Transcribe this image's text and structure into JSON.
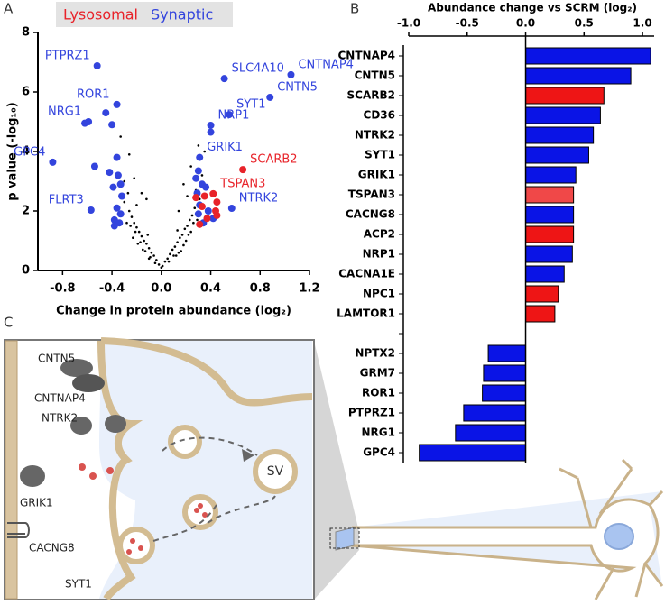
{
  "panel_labels": [
    "A",
    "B",
    "C"
  ],
  "chart_data": [
    {
      "type": "scatter",
      "xlabel": "Change in protein abundance (log₂)",
      "ylabel": "p value (-log₁₀)",
      "xlim": [
        -1.0,
        1.2
      ],
      "ylim": [
        0,
        8
      ],
      "xticks": [
        -0.8,
        -0.4,
        {
          "value": 0,
          "label": "0.0"
        },
        0.4,
        0.8,
        1.2
      ],
      "yticks": [
        0,
        2,
        4,
        6,
        8
      ],
      "series": [
        {
          "color": "#000000",
          "x": [
            -0.02,
            0.01,
            0.03,
            -0.04,
            0.05,
            -0.06,
            0.07,
            -0.08,
            0.09,
            -0.1,
            0.11,
            -0.12,
            0.13,
            -0.14,
            0.15,
            -0.16,
            0.17,
            -0.18,
            0.19,
            -0.2,
            0.21,
            -0.22,
            0.23,
            -0.24,
            0.25,
            -0.26,
            0.27,
            -0.15,
            0.16,
            -0.19,
            0.2,
            -0.23,
            0.24,
            -0.28,
            0.29,
            -0.1,
            0.12,
            -0.05,
            0.06,
            0.0,
            -0.3,
            0.31,
            -0.25,
            0.26,
            -0.21,
            0.22,
            -0.17,
            0.18,
            -0.13,
            0.14,
            -0.09,
            0.1,
            -0.27,
            0.28,
            -0.11,
            0.13,
            -0.2,
            0.21,
            -0.3,
            0.33,
            0.18,
            -0.16,
            0.24,
            -0.22,
            0.14,
            -0.12,
            0.3,
            -0.26,
            0.35,
            -0.33
          ],
          "values": [
            0.2,
            0.15,
            0.3,
            0.35,
            0.4,
            0.5,
            0.55,
            0.6,
            0.7,
            0.75,
            0.8,
            0.9,
            0.95,
            1.0,
            1.1,
            1.15,
            1.2,
            1.3,
            1.4,
            1.45,
            1.5,
            1.6,
            1.7,
            1.8,
            1.85,
            2.0,
            2.1,
            0.7,
            0.65,
            0.9,
            1.0,
            1.1,
            1.3,
            1.6,
            1.7,
            0.4,
            0.5,
            0.25,
            0.3,
            0.1,
            2.3,
            2.4,
            1.5,
            1.6,
            1.3,
            1.2,
            0.95,
            0.85,
            0.65,
            0.6,
            0.45,
            0.5,
            2.6,
            2.7,
            1.2,
            1.35,
            2.2,
            2.5,
            3.0,
            3.2,
            2.9,
            2.6,
            3.5,
            3.1,
            2.0,
            2.4,
            4.2,
            3.9,
            4.0,
            4.5
          ]
        },
        {
          "name": "Synaptic",
          "color": "#3344dd",
          "x": [
            -0.52,
            -0.36,
            -0.59,
            -0.88,
            -0.57,
            0.51,
            0.55,
            1.05,
            0.88,
            0.4,
            0.31,
            0.57,
            -0.45,
            -0.62,
            -0.4,
            -0.54,
            -0.36,
            -0.42,
            -0.35,
            -0.33,
            -0.39,
            -0.32,
            -0.36,
            -0.33,
            -0.38,
            -0.34,
            -0.38,
            0.4,
            0.3,
            0.28,
            0.33,
            0.29,
            0.36,
            0.31,
            0.38,
            0.3,
            0.34,
            0.42
          ],
          "values": [
            6.88,
            5.58,
            5.0,
            3.64,
            2.03,
            6.45,
            5.24,
            6.58,
            5.82,
            4.88,
            3.8,
            2.09,
            5.3,
            4.95,
            4.9,
            3.5,
            3.8,
            3.3,
            3.2,
            2.9,
            2.8,
            2.5,
            2.1,
            1.9,
            1.7,
            1.6,
            1.5,
            4.65,
            3.35,
            3.1,
            2.9,
            2.6,
            2.8,
            2.2,
            2.0,
            1.9,
            1.6,
            1.75
          ],
          "labels": [
            "PTPRZ1",
            "ROR1",
            "NRG1",
            "GPC4",
            "FLRT3",
            "SLC4A10",
            "SYT1",
            "CNTNAP4",
            "CNTN5",
            "NRP1",
            "GRIK1",
            "NTRK2",
            null,
            null,
            null,
            null,
            null,
            null,
            null,
            null,
            null,
            null,
            null,
            null,
            null,
            null,
            null,
            null,
            null,
            null,
            null,
            null,
            null,
            null,
            null,
            null,
            null,
            null
          ]
        },
        {
          "name": "Lysosomal",
          "color": "#e8232a",
          "x": [
            0.66,
            0.42,
            0.28,
            0.35,
            0.45,
            0.33,
            0.44,
            0.37,
            0.45,
            0.31
          ],
          "values": [
            3.39,
            2.58,
            2.45,
            2.5,
            2.3,
            2.15,
            2.0,
            1.75,
            1.85,
            1.55
          ],
          "labels": [
            "SCARB2",
            "TSPAN3",
            null,
            null,
            null,
            null,
            null,
            null,
            null,
            null
          ]
        }
      ]
    },
    {
      "type": "hbar",
      "title": "Abundance change vs SCRM (log₂)",
      "xlim": [
        -1.0,
        1.1
      ],
      "xticks": [
        {
          "value": -1,
          "label": "-1.0"
        },
        -0.5,
        {
          "value": 0,
          "label": "0.0"
        },
        0.5,
        {
          "value": 1,
          "label": "1.0"
        }
      ],
      "categories": [
        "CNTNAP4",
        "CNTN5",
        "SCARB2",
        "CD36",
        "NTRK2",
        "SYT1",
        "GRIK1",
        "TSPAN3",
        "CACNG8",
        "ACP2",
        "NRP1",
        "CACNA1E",
        "NPC1",
        "LAMTOR1",
        null,
        "NPTX2",
        "GRM7",
        "ROR1",
        "PTPRZ1",
        "NRG1",
        "GPC4"
      ],
      "values": [
        1.07,
        0.9,
        0.67,
        0.64,
        0.58,
        0.54,
        0.43,
        0.41,
        0.41,
        0.41,
        0.4,
        0.33,
        0.28,
        0.25,
        null,
        -0.32,
        -0.36,
        -0.37,
        -0.53,
        -0.6,
        -0.91
      ],
      "colors": [
        "#0a14e6",
        "#0a14e6",
        "#ee1515",
        "#0a14e6",
        "#0a14e6",
        "#0a14e6",
        "#0a14e6",
        "#f04848",
        "#0a14e6",
        "#ee1515",
        "#0a14e6",
        "#0a14e6",
        "#ee1515",
        "#ee1515",
        null,
        "#0a14e6",
        "#0a14e6",
        "#0a14e6",
        "#0a14e6",
        "#0a14e6",
        "#0a14e6"
      ]
    }
  ],
  "diagram": {
    "labels": [
      "CNTN5",
      "CNTNAP4",
      "NTRK2",
      "GRIK1",
      "CACNG8",
      "SYT1",
      "SV"
    ]
  }
}
